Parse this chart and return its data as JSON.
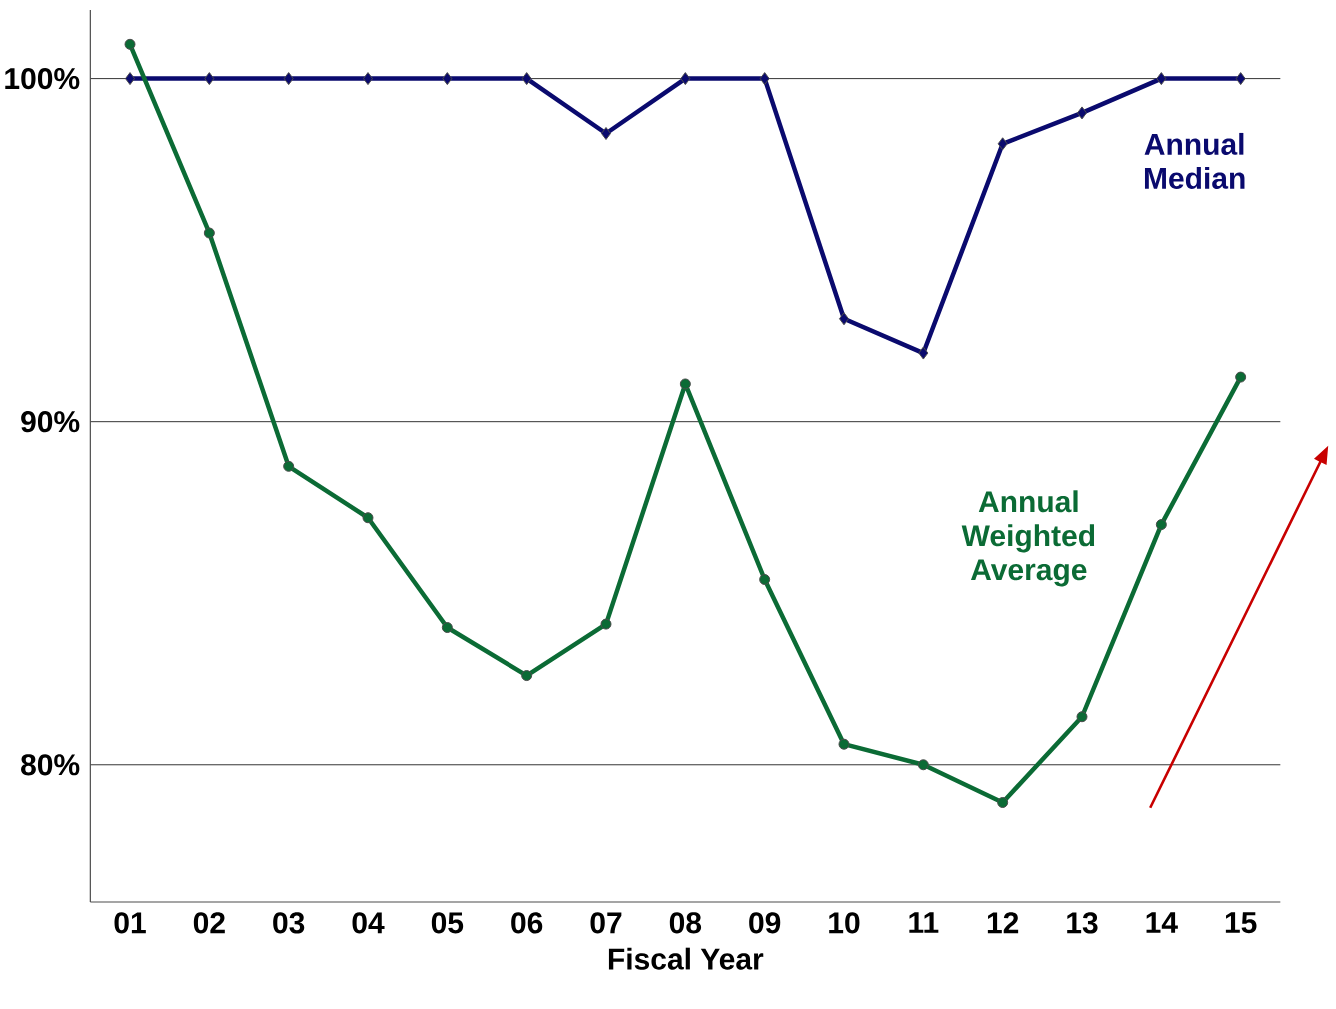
{
  "chart_data": {
    "type": "line",
    "xlabel": "Fiscal Year",
    "categories": [
      "01",
      "02",
      "03",
      "04",
      "05",
      "06",
      "07",
      "08",
      "09",
      "10",
      "11",
      "12",
      "13",
      "14",
      "15"
    ],
    "series": [
      {
        "name": "Annual Median",
        "color": "#0a0a6e",
        "marker": "diamond",
        "values": [
          100,
          100,
          100,
          100,
          100,
          100,
          98.4,
          100,
          100,
          93.0,
          92.0,
          98.1,
          99.0,
          100,
          100
        ]
      },
      {
        "name": "Annual Weighted Average",
        "color": "#0b6b35",
        "marker": "circle",
        "values": [
          101.0,
          95.5,
          88.7,
          87.2,
          84.0,
          82.6,
          84.1,
          91.1,
          85.4,
          80.6,
          80.0,
          78.9,
          81.4,
          87.0,
          91.3
        ]
      }
    ],
    "ylim": [
      76,
      102
    ],
    "yticks": [
      {
        "value": 80,
        "label": "80%"
      },
      {
        "value": 90,
        "label": "90%"
      },
      {
        "value": 100,
        "label": "100%"
      }
    ],
    "grid": "y"
  }
}
